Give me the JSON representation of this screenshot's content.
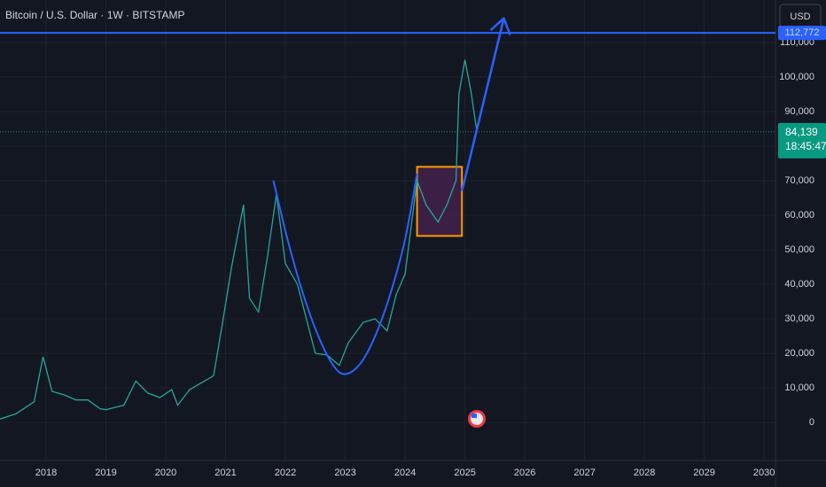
{
  "chart_data": {
    "type": "line",
    "title": "Bitcoin / U.S. Dollar · 1W · BITSTAMP",
    "currency": "USD",
    "x": [
      2017.23,
      2017.5,
      2017.8,
      2017.95,
      2018.1,
      2018.3,
      2018.5,
      2018.7,
      2018.9,
      2019.0,
      2019.3,
      2019.5,
      2019.7,
      2019.9,
      2020.1,
      2020.2,
      2020.4,
      2020.6,
      2020.8,
      2020.95,
      2021.1,
      2021.3,
      2021.4,
      2021.55,
      2021.7,
      2021.85,
      2022.0,
      2022.2,
      2022.35,
      2022.5,
      2022.7,
      2022.9,
      2023.05,
      2023.3,
      2023.5,
      2023.7,
      2023.85,
      2024.0,
      2024.2,
      2024.35,
      2024.55,
      2024.7,
      2024.85,
      2024.9,
      2025.0,
      2025.1,
      2025.2
    ],
    "series": [
      {
        "color": "#26a69a",
        "values": [
          1000,
          2500,
          6000,
          19000,
          9000,
          8000,
          6500,
          6500,
          4000,
          3700,
          5000,
          12000,
          8500,
          7200,
          9500,
          5000,
          9500,
          11500,
          13500,
          29000,
          45000,
          63000,
          36000,
          32000,
          48000,
          66000,
          46000,
          40000,
          30000,
          20000,
          19500,
          16500,
          23000,
          29000,
          30000,
          26500,
          37000,
          43000,
          70000,
          63000,
          58000,
          63000,
          70000,
          95000,
          105000,
          96000,
          84139
        ]
      }
    ],
    "xlim": [
      2017.23,
      2030.19
    ],
    "xticks": [
      2018,
      2019,
      2020,
      2021,
      2022,
      2023,
      2024,
      2025,
      2026,
      2027,
      2028,
      2029,
      2030
    ],
    "ylim": [
      -11000,
      122300
    ],
    "yticks": [
      0,
      {
        "value": 10000,
        "label": "10,000"
      },
      {
        "value": 20000,
        "label": "20,000"
      },
      {
        "value": 30000,
        "label": "30,000"
      },
      {
        "value": 40000,
        "label": "40,000"
      },
      {
        "value": 50000,
        "label": "50,000"
      },
      {
        "value": 60000,
        "label": "60,000"
      },
      {
        "value": 70000,
        "label": "70,000"
      },
      {
        "value": 80000,
        "label": "80,000"
      },
      {
        "value": 90000,
        "label": "90,000"
      },
      {
        "value": 100000,
        "label": "100,000"
      },
      {
        "value": 110000,
        "label": "110,000"
      }
    ],
    "grid": true,
    "level": {
      "value": 112772,
      "label": "112,772",
      "color": "#2962ff"
    },
    "last_price": {
      "value": 84139,
      "label": "84,139",
      "countdown": "18:45:47",
      "color": "#089981"
    },
    "box": {
      "x": [
        2024.2,
        2024.95
      ],
      "y": [
        54000,
        74000
      ],
      "color": "#ff9800"
    },
    "curve": {
      "x": [
        2021.8,
        2022.05,
        2022.3,
        2022.55,
        2022.8,
        2023.0,
        2023.25,
        2023.5,
        2023.75,
        2024.0,
        2024.2
      ],
      "y": [
        70000,
        52000,
        37000,
        25000,
        16500,
        14000,
        17000,
        25000,
        37000,
        53000,
        72000
      ],
      "color": "#2962ff"
    },
    "arrow": {
      "x": [
        2024.95,
        2025.65
      ],
      "y": [
        67000,
        117000
      ],
      "color": "#2962ff"
    }
  }
}
